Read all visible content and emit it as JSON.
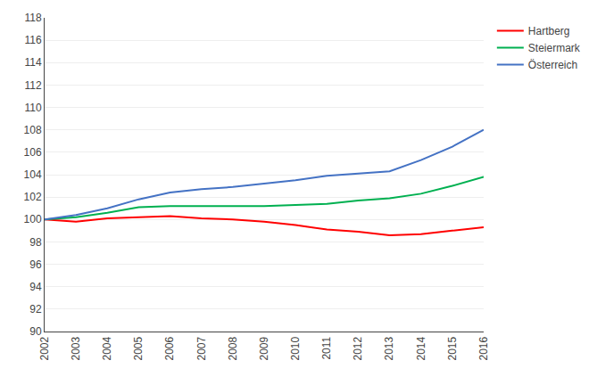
{
  "chart_data": {
    "type": "line",
    "x": [
      2002,
      2003,
      2004,
      2005,
      2006,
      2007,
      2008,
      2009,
      2010,
      2011,
      2012,
      2013,
      2014,
      2015,
      2016
    ],
    "series": [
      {
        "name": "Hartberg",
        "color": "#ff0000",
        "values": [
          100.0,
          99.8,
          100.1,
          100.2,
          100.3,
          100.1,
          100.0,
          99.8,
          99.5,
          99.1,
          98.9,
          98.6,
          98.7,
          99.0,
          99.3
        ]
      },
      {
        "name": "Steiermark",
        "color": "#00b050",
        "values": [
          100.0,
          100.2,
          100.6,
          101.1,
          101.2,
          101.2,
          101.2,
          101.2,
          101.3,
          101.4,
          101.7,
          101.9,
          102.3,
          103.0,
          103.8
        ]
      },
      {
        "name": "Österreich",
        "color": "#4472c4",
        "values": [
          100.0,
          100.4,
          101.0,
          101.8,
          102.4,
          102.7,
          102.9,
          103.2,
          103.5,
          103.9,
          104.1,
          104.3,
          105.3,
          106.5,
          108.0
        ]
      }
    ],
    "xlim": [
      2002,
      2016
    ],
    "xticks": [
      2002,
      2003,
      2004,
      2005,
      2006,
      2007,
      2008,
      2009,
      2010,
      2011,
      2012,
      2013,
      2014,
      2015,
      2016
    ],
    "ylim": [
      90,
      118
    ],
    "yticks": [
      90,
      92,
      94,
      96,
      98,
      100,
      102,
      104,
      106,
      108,
      110,
      112,
      114,
      116,
      118
    ],
    "grid": "y",
    "legend": "right"
  }
}
